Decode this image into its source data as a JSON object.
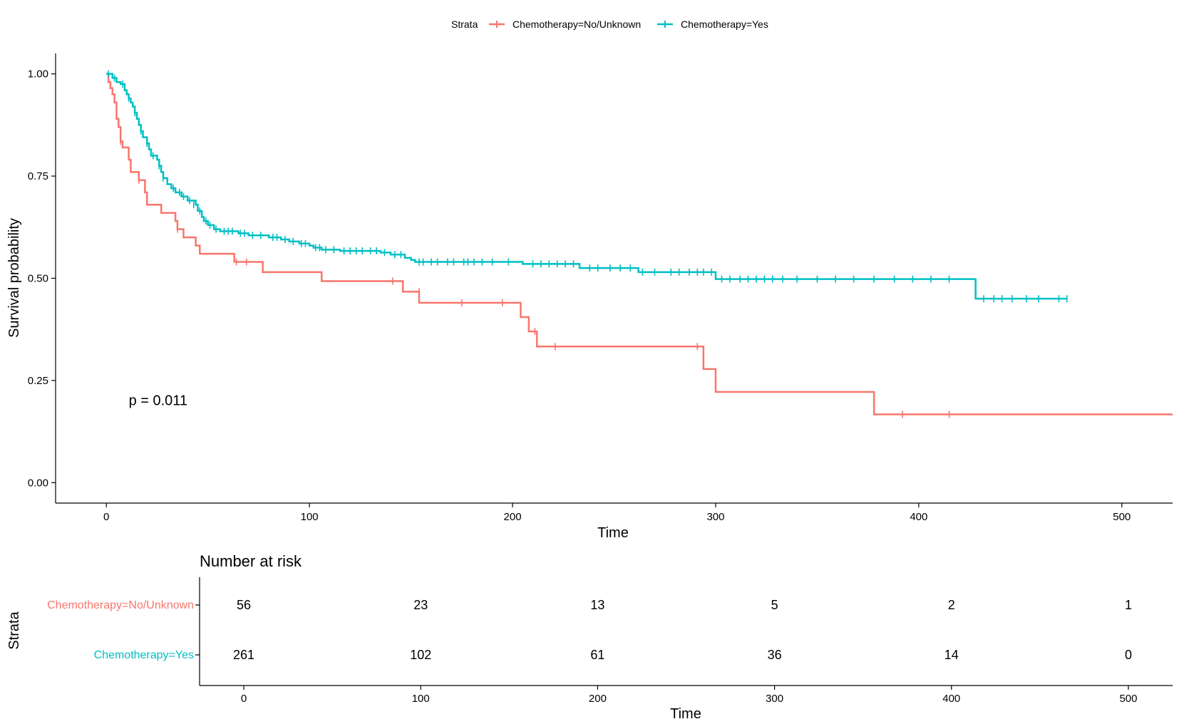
{
  "legend": {
    "title": "Strata",
    "entries": [
      "Chemotherapy=No/Unknown",
      "Chemotherapy=Yes"
    ]
  },
  "colors": {
    "no_unknown": "#F8766D",
    "yes": "#00BFC4",
    "axis": "#000000"
  },
  "chart_data": {
    "type": "line",
    "title": "",
    "xlabel": "Time",
    "ylabel": "Survival probability",
    "xlim": [
      -25,
      525
    ],
    "ylim": [
      -0.05,
      1.05
    ],
    "x_ticks": [
      0,
      100,
      200,
      300,
      400,
      500
    ],
    "x_tick_labels": [
      "0",
      "100",
      "200",
      "300",
      "400",
      "500"
    ],
    "y_ticks": [
      0,
      0.25,
      0.5,
      0.75,
      1.0
    ],
    "y_tick_labels": [
      "0.00",
      "0.25",
      "0.50",
      "0.75",
      "1.00"
    ],
    "pvalue_text": "p = 0.011",
    "pvalue_pos": [
      11,
      0.19
    ],
    "series": [
      {
        "name": "Chemotherapy=No/Unknown",
        "color": "#F8766D",
        "steps": [
          [
            0,
            1.0
          ],
          [
            1,
            0.98
          ],
          [
            2,
            0.965
          ],
          [
            3,
            0.95
          ],
          [
            4,
            0.93
          ],
          [
            5,
            0.89
          ],
          [
            6,
            0.87
          ],
          [
            7,
            0.835
          ],
          [
            8,
            0.82
          ],
          [
            11,
            0.79
          ],
          [
            12,
            0.76
          ],
          [
            16,
            0.74
          ],
          [
            19,
            0.71
          ],
          [
            20,
            0.68
          ],
          [
            27,
            0.66
          ],
          [
            34,
            0.64
          ],
          [
            35,
            0.62
          ],
          [
            38,
            0.6
          ],
          [
            44,
            0.58
          ],
          [
            46,
            0.56
          ],
          [
            63,
            0.54
          ],
          [
            77,
            0.515
          ],
          [
            106,
            0.493
          ],
          [
            146,
            0.467
          ],
          [
            154,
            0.44
          ],
          [
            204,
            0.405
          ],
          [
            208,
            0.37
          ],
          [
            212,
            0.333
          ],
          [
            294,
            0.278
          ],
          [
            300,
            0.222
          ],
          [
            378,
            0.167
          ],
          [
            525,
            0.167
          ]
        ],
        "censor": [
          [
            7,
            0.835
          ],
          [
            16,
            0.74
          ],
          [
            35,
            0.62
          ],
          [
            64,
            0.54
          ],
          [
            69,
            0.54
          ],
          [
            141,
            0.493
          ],
          [
            154,
            0.467
          ],
          [
            175,
            0.44
          ],
          [
            195,
            0.44
          ],
          [
            211,
            0.37
          ],
          [
            221,
            0.333
          ],
          [
            291,
            0.333
          ],
          [
            392,
            0.167
          ],
          [
            415,
            0.167
          ]
        ]
      },
      {
        "name": "Chemotherapy=Yes",
        "color": "#00BFC4",
        "steps": [
          [
            0,
            1.0
          ],
          [
            3,
            0.99
          ],
          [
            5,
            0.98
          ],
          [
            7,
            0.975
          ],
          [
            9,
            0.96
          ],
          [
            10,
            0.95
          ],
          [
            11,
            0.94
          ],
          [
            12,
            0.93
          ],
          [
            13,
            0.92
          ],
          [
            14,
            0.905
          ],
          [
            15,
            0.89
          ],
          [
            16,
            0.875
          ],
          [
            17,
            0.86
          ],
          [
            18,
            0.845
          ],
          [
            20,
            0.83
          ],
          [
            21,
            0.815
          ],
          [
            22,
            0.8
          ],
          [
            25,
            0.79
          ],
          [
            26,
            0.775
          ],
          [
            27,
            0.76
          ],
          [
            28,
            0.745
          ],
          [
            30,
            0.73
          ],
          [
            32,
            0.72
          ],
          [
            34,
            0.71
          ],
          [
            37,
            0.7
          ],
          [
            40,
            0.69
          ],
          [
            44,
            0.68
          ],
          [
            45,
            0.665
          ],
          [
            47,
            0.65
          ],
          [
            48,
            0.64
          ],
          [
            50,
            0.63
          ],
          [
            53,
            0.62
          ],
          [
            56,
            0.615
          ],
          [
            65,
            0.61
          ],
          [
            70,
            0.605
          ],
          [
            80,
            0.6
          ],
          [
            86,
            0.595
          ],
          [
            90,
            0.59
          ],
          [
            95,
            0.585
          ],
          [
            100,
            0.58
          ],
          [
            102,
            0.575
          ],
          [
            106,
            0.57
          ],
          [
            115,
            0.567
          ],
          [
            135,
            0.563
          ],
          [
            140,
            0.558
          ],
          [
            147,
            0.55
          ],
          [
            150,
            0.545
          ],
          [
            152,
            0.54
          ],
          [
            205,
            0.535
          ],
          [
            233,
            0.525
          ],
          [
            262,
            0.515
          ],
          [
            300,
            0.498
          ],
          [
            428,
            0.45
          ],
          [
            473,
            0.45
          ]
        ],
        "censor": [
          [
            1,
            1.0
          ],
          [
            4,
            0.99
          ],
          [
            8,
            0.975
          ],
          [
            11,
            0.94
          ],
          [
            14,
            0.905
          ],
          [
            17,
            0.86
          ],
          [
            20,
            0.83
          ],
          [
            23,
            0.8
          ],
          [
            26,
            0.775
          ],
          [
            28,
            0.745
          ],
          [
            33,
            0.72
          ],
          [
            36,
            0.71
          ],
          [
            38,
            0.7
          ],
          [
            41,
            0.69
          ],
          [
            43,
            0.68
          ],
          [
            46,
            0.665
          ],
          [
            49,
            0.64
          ],
          [
            51,
            0.63
          ],
          [
            54,
            0.62
          ],
          [
            58,
            0.615
          ],
          [
            60,
            0.615
          ],
          [
            62,
            0.615
          ],
          [
            66,
            0.61
          ],
          [
            68,
            0.61
          ],
          [
            72,
            0.605
          ],
          [
            76,
            0.605
          ],
          [
            82,
            0.6
          ],
          [
            84,
            0.6
          ],
          [
            88,
            0.595
          ],
          [
            92,
            0.59
          ],
          [
            96,
            0.585
          ],
          [
            98,
            0.585
          ],
          [
            103,
            0.575
          ],
          [
            105,
            0.575
          ],
          [
            108,
            0.57
          ],
          [
            112,
            0.57
          ],
          [
            117,
            0.567
          ],
          [
            120,
            0.567
          ],
          [
            123,
            0.567
          ],
          [
            126,
            0.567
          ],
          [
            130,
            0.567
          ],
          [
            133,
            0.567
          ],
          [
            137,
            0.563
          ],
          [
            142,
            0.558
          ],
          [
            145,
            0.558
          ],
          [
            154,
            0.54
          ],
          [
            156,
            0.54
          ],
          [
            160,
            0.54
          ],
          [
            163,
            0.54
          ],
          [
            168,
            0.54
          ],
          [
            171,
            0.54
          ],
          [
            176,
            0.54
          ],
          [
            178,
            0.54
          ],
          [
            181,
            0.54
          ],
          [
            185,
            0.54
          ],
          [
            190,
            0.54
          ],
          [
            198,
            0.54
          ],
          [
            210,
            0.535
          ],
          [
            214,
            0.535
          ],
          [
            218,
            0.535
          ],
          [
            222,
            0.535
          ],
          [
            226,
            0.535
          ],
          [
            230,
            0.535
          ],
          [
            238,
            0.525
          ],
          [
            242,
            0.525
          ],
          [
            248,
            0.525
          ],
          [
            253,
            0.525
          ],
          [
            258,
            0.525
          ],
          [
            264,
            0.515
          ],
          [
            270,
            0.515
          ],
          [
            278,
            0.515
          ],
          [
            282,
            0.515
          ],
          [
            287,
            0.515
          ],
          [
            291,
            0.515
          ],
          [
            294,
            0.515
          ],
          [
            298,
            0.515
          ],
          [
            303,
            0.498
          ],
          [
            307,
            0.498
          ],
          [
            312,
            0.498
          ],
          [
            316,
            0.498
          ],
          [
            320,
            0.498
          ],
          [
            324,
            0.498
          ],
          [
            328,
            0.498
          ],
          [
            333,
            0.498
          ],
          [
            340,
            0.498
          ],
          [
            350,
            0.498
          ],
          [
            359,
            0.498
          ],
          [
            368,
            0.498
          ],
          [
            378,
            0.498
          ],
          [
            388,
            0.498
          ],
          [
            397,
            0.498
          ],
          [
            406,
            0.498
          ],
          [
            415,
            0.498
          ],
          [
            432,
            0.45
          ],
          [
            437,
            0.45
          ],
          [
            441,
            0.45
          ],
          [
            446,
            0.45
          ],
          [
            453,
            0.45
          ],
          [
            459,
            0.45
          ],
          [
            469,
            0.45
          ],
          [
            473,
            0.45
          ]
        ]
      }
    ]
  },
  "risk_table": {
    "title": "Number at risk",
    "ylabel": "Strata",
    "xlabel": "Time",
    "xlim": [
      -25,
      525
    ],
    "times": [
      0,
      100,
      200,
      300,
      400,
      500
    ],
    "x_tick_labels": [
      "0",
      "100",
      "200",
      "300",
      "400",
      "500"
    ],
    "rows": [
      {
        "label": "Chemotherapy=No/Unknown",
        "color": "#F8766D",
        "counts": [
          "56",
          "23",
          "13",
          "5",
          "2",
          "1"
        ]
      },
      {
        "label": "Chemotherapy=Yes",
        "color": "#00BFC4",
        "counts": [
          "261",
          "102",
          "61",
          "36",
          "14",
          "0"
        ]
      }
    ]
  }
}
